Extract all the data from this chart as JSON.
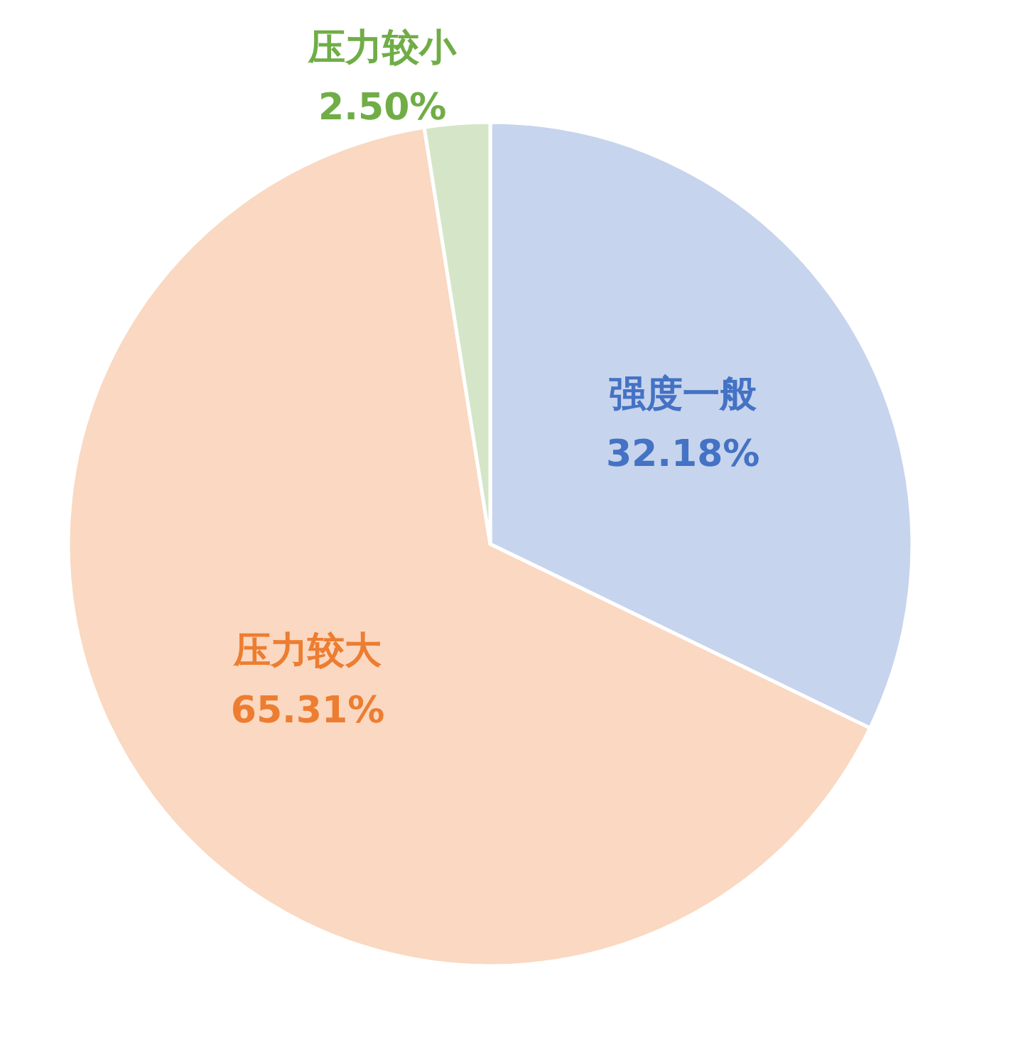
{
  "chart_data": {
    "type": "pie",
    "categories": [
      "强度一般",
      "压力较大",
      "压力较小"
    ],
    "values": [
      32.18,
      65.31,
      2.5
    ],
    "value_labels": [
      "32.18%",
      "65.31%",
      "2.50%"
    ],
    "colors": [
      "#4472c4",
      "#ed7d31",
      "#70ad47"
    ]
  }
}
